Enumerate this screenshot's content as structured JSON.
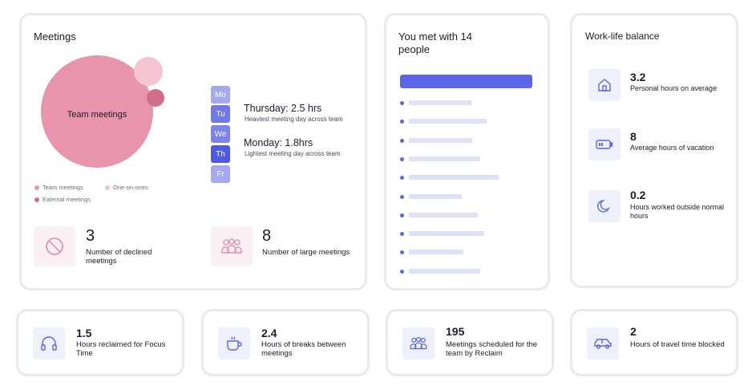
{
  "meetings": {
    "title": "Meetings",
    "bubble_label": "Team meetings",
    "legend": [
      "Team meetings",
      "One-on-ones",
      "External meetings"
    ],
    "days": [
      "Mo",
      "Tu",
      "We",
      "Th",
      "Fr"
    ],
    "heaviest": {
      "heading": "Thursday: 2.5 hrs",
      "sub": "Heaviest meeting day across team"
    },
    "lightest": {
      "heading": "Monday: 1.8hrs",
      "sub": "Lightest meeting day across team"
    },
    "declined": {
      "value": "3",
      "label": "Number of declined meetings",
      "icon": "prohibited-icon"
    },
    "large": {
      "value": "8",
      "label": "Number of large meetings",
      "icon": "group-icon"
    }
  },
  "people": {
    "title": "You met with 14 people",
    "bar_fractions": [
      0.47,
      0.59,
      0.48,
      0.54,
      0.68,
      0.4,
      0.52,
      0.57,
      0.41,
      0.54
    ]
  },
  "work_life": {
    "title": "Work-life balance",
    "stats": [
      {
        "value": "3.2",
        "label": "Personal hours on average",
        "icon": "home-icon"
      },
      {
        "value": "8",
        "label": "Average hours of vacation",
        "icon": "battery-icon"
      },
      {
        "value": "0.2",
        "label": "Hours worked outside normal hours",
        "icon": "moon-icon"
      }
    ]
  },
  "bottom": [
    {
      "value": "1.5",
      "label": "Hours reclaimed for Focus Time",
      "icon": "headphones-icon"
    },
    {
      "value": "2.4",
      "label": "Hours of breaks between meetings",
      "icon": "coffee-cup-icon"
    },
    {
      "value": "195",
      "label": "Meetings scheduled for the team by Reclaim",
      "icon": "group-icon"
    },
    {
      "value": "2",
      "label": "Hours of travel time blocked",
      "icon": "car-icon"
    }
  ],
  "colors": {
    "accent": "#5b67e8",
    "team": "#e994ad",
    "one_on_one": "#f4c4d3",
    "external": "#cf6d8b"
  }
}
